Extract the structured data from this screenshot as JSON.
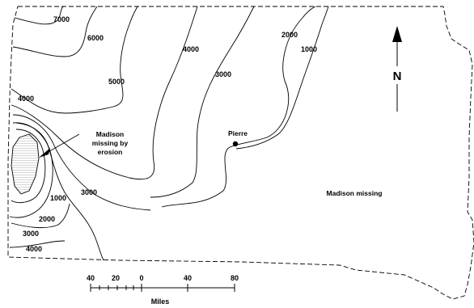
{
  "contour_labels": {
    "c7000": "7000",
    "c6000": "6000",
    "c5000": "5000",
    "c4000_north": "4000",
    "c3000_north": "3000",
    "c2000_north": "2000",
    "c1000_north": "1000",
    "c4000_west": "4000",
    "c1000_south": "1000",
    "c2000_south": "2000",
    "c3000_south": "3000",
    "c4000_south": "4000",
    "c3000_mid": "3000"
  },
  "annotations": {
    "madison_erosion_line1": "Madison",
    "madison_erosion_line2": "missing by",
    "madison_erosion_line3": "erosion",
    "madison_missing": "Madison missing",
    "city_pierre": "Pierre"
  },
  "north_arrow": {
    "label": "N"
  },
  "scale_bar": {
    "ticks": [
      "40",
      "20",
      "0",
      "40",
      "80"
    ],
    "units": "Miles"
  }
}
